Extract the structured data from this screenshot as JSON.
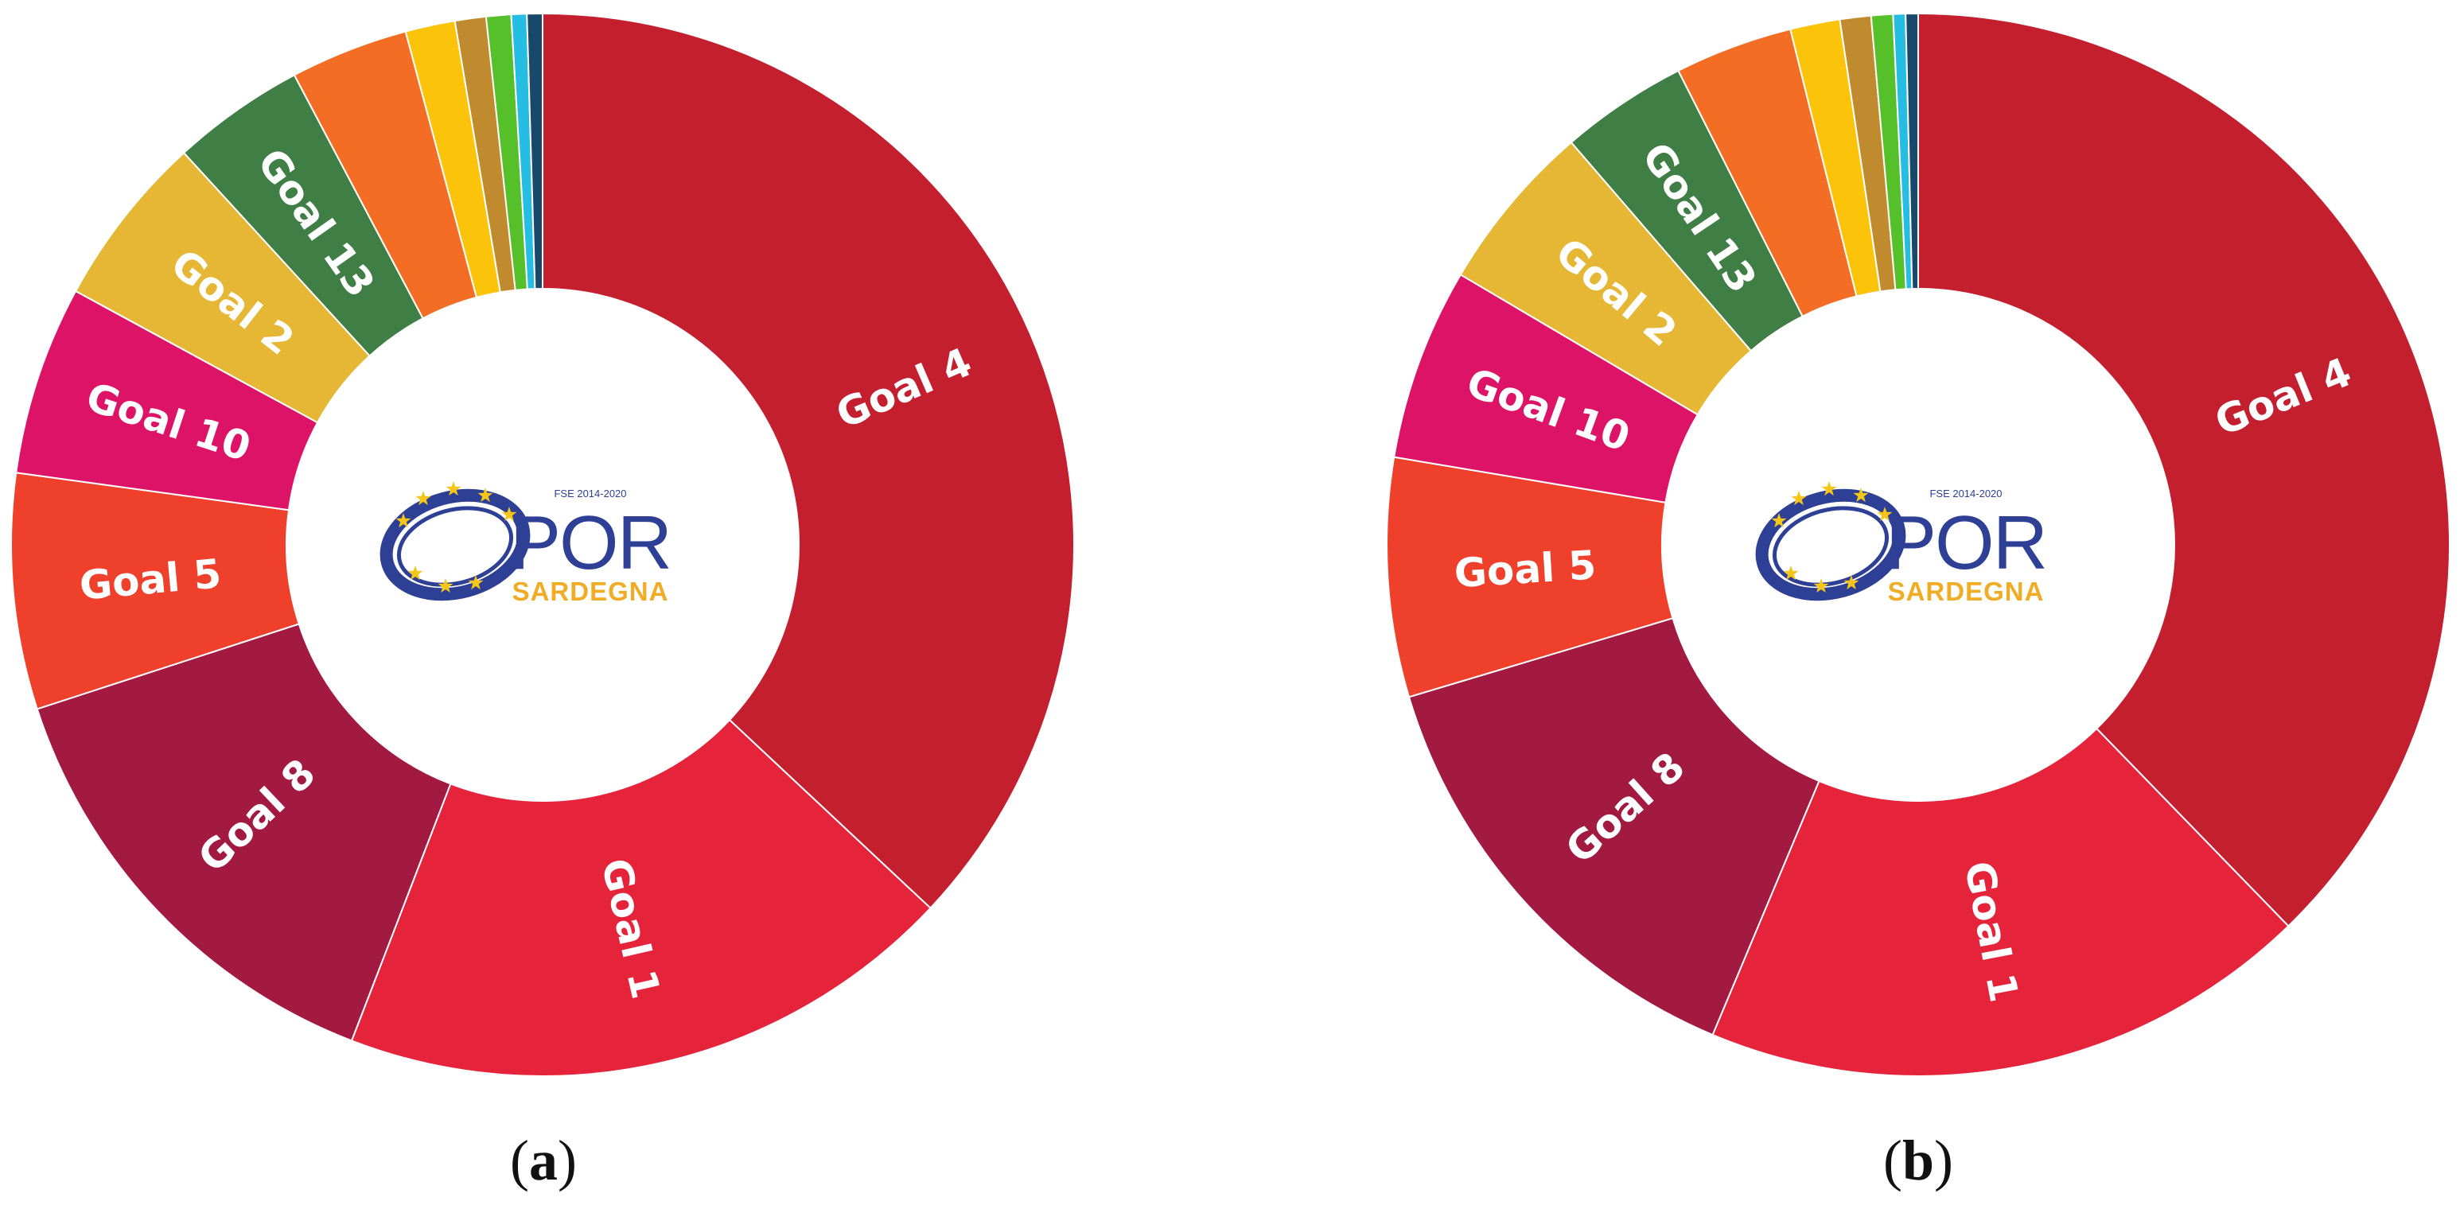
{
  "chart_data": [
    {
      "type": "pie",
      "panel": "a",
      "slices": [
        {
          "label": "Goal 4",
          "value": 39.2,
          "color": "#c41f2e"
        },
        {
          "label": "Goal 1",
          "value": 20.0,
          "color": "#e5243b"
        },
        {
          "label": "Goal 8",
          "value": 15.0,
          "color": "#a21942"
        },
        {
          "label": "Goal 5",
          "value": 7.6,
          "color": "#ef402b"
        },
        {
          "label": "Goal 10",
          "value": 6.1,
          "color": "#dd1367"
        },
        {
          "label": "Goal 2",
          "value": 5.6,
          "color": "#e5b735"
        },
        {
          "label": "Goal 13",
          "value": 4.3,
          "color": "#3f7e44"
        },
        {
          "label": "",
          "value": 3.8,
          "color": "#f36d25"
        },
        {
          "label": "",
          "value": 1.6,
          "color": "#fcc30b"
        },
        {
          "label": "",
          "value": 1.0,
          "color": "#bf8b2e"
        },
        {
          "label": "",
          "value": 0.8,
          "color": "#56c02b"
        },
        {
          "label": "",
          "value": 0.5,
          "color": "#26bde2"
        },
        {
          "label": "",
          "value": 0.5,
          "color": "#19486a"
        }
      ]
    },
    {
      "type": "pie",
      "panel": "b",
      "slices": [
        {
          "label": "Goal 4",
          "value": 40.0,
          "color": "#c41f2e"
        },
        {
          "label": "Goal 1",
          "value": 19.7,
          "color": "#e5243b"
        },
        {
          "label": "Goal 8",
          "value": 14.9,
          "color": "#a21942"
        },
        {
          "label": "Goal 5",
          "value": 7.7,
          "color": "#ef402b"
        },
        {
          "label": "Goal 10",
          "value": 6.2,
          "color": "#dd1367"
        },
        {
          "label": "Goal 2",
          "value": 5.5,
          "color": "#e5b735"
        },
        {
          "label": "Goal 13",
          "value": 4.1,
          "color": "#3f7e44"
        },
        {
          "label": "",
          "value": 3.8,
          "color": "#f36d25"
        },
        {
          "label": "",
          "value": 1.6,
          "color": "#fcc30b"
        },
        {
          "label": "",
          "value": 1.0,
          "color": "#bf8b2e"
        },
        {
          "label": "",
          "value": 0.7,
          "color": "#56c02b"
        },
        {
          "label": "",
          "value": 0.4,
          "color": "#26bde2"
        },
        {
          "label": "",
          "value": 0.4,
          "color": "#19486a"
        }
      ]
    }
  ],
  "logo": {
    "subtitle": "FSE 2014-2020",
    "name": "POR",
    "region": "SARDEGNA",
    "colors": {
      "blue": "#2e3f96",
      "gold": "#f0ac24",
      "star": "#f5c518"
    }
  },
  "captions": {
    "a": {
      "open": "(",
      "letter": "a",
      "close": ")"
    },
    "b": {
      "open": "(",
      "letter": "b",
      "close": ")"
    }
  }
}
